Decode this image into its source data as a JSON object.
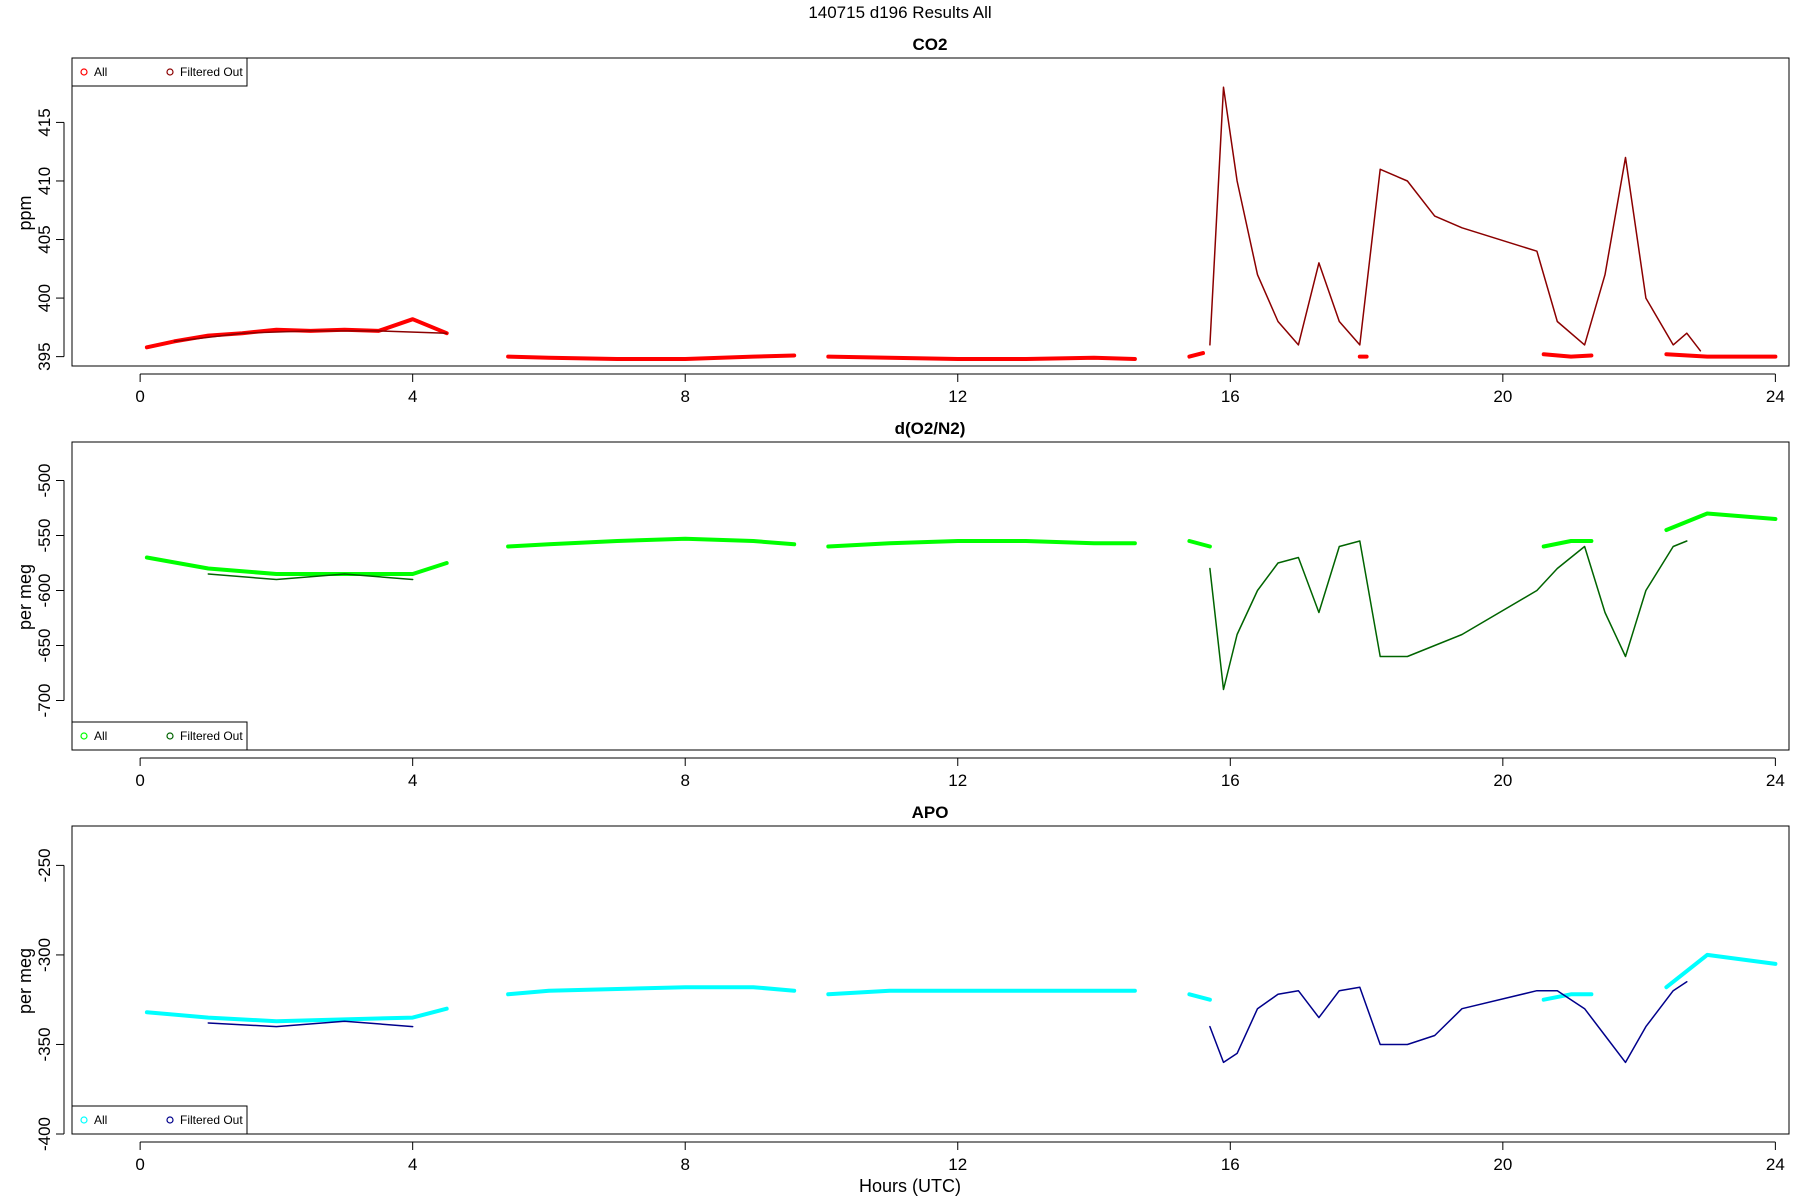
{
  "figure": {
    "title": "140715   d196   Results All",
    "xlabel": "Hours (UTC)"
  },
  "chart_data": [
    {
      "type": "scatter",
      "title": "CO2",
      "xlabel": "",
      "ylabel": "ppm",
      "xlim": [
        -1,
        24.2
      ],
      "ylim": [
        394.2,
        420.5
      ],
      "xticks": [
        0,
        4,
        8,
        12,
        16,
        20,
        24
      ],
      "yticks": [
        395,
        400,
        405,
        410,
        415
      ],
      "legend": {
        "position": "top-left",
        "entries": [
          "All",
          "Filtered Out"
        ]
      },
      "series": [
        {
          "name": "All",
          "color": "#ff0000",
          "segments": [
            {
              "x": [
                0.1,
                0.5,
                1.0,
                1.5,
                2.0,
                2.5,
                3.0,
                3.5,
                4.0,
                4.5
              ],
              "y": [
                395.8,
                396.3,
                396.8,
                397.0,
                397.3,
                397.2,
                397.3,
                397.2,
                398.2,
                397.0
              ]
            },
            {
              "x": [
                5.4,
                6,
                7,
                8,
                9,
                9.6
              ],
              "y": [
                395.0,
                394.9,
                394.8,
                394.8,
                395.0,
                395.1
              ]
            },
            {
              "x": [
                10.1,
                11,
                12,
                13,
                14,
                14.6
              ],
              "y": [
                395.0,
                394.9,
                394.8,
                394.8,
                394.9,
                394.8
              ]
            },
            {
              "x": [
                15.4,
                15.6
              ],
              "y": [
                395.0,
                395.3
              ]
            },
            {
              "x": [
                17.9,
                18.0
              ],
              "y": [
                395.0,
                395.0
              ]
            },
            {
              "x": [
                20.6,
                21.0,
                21.3
              ],
              "y": [
                395.2,
                395.0,
                395.1
              ]
            },
            {
              "x": [
                22.4,
                23,
                24
              ],
              "y": [
                395.2,
                395.0,
                395.0
              ]
            }
          ]
        },
        {
          "name": "Filtered Out",
          "color": "#8b0000",
          "segments": [
            {
              "x": [
                0.5,
                1.5,
                2.5,
                3.5,
                4.5
              ],
              "y": [
                396.3,
                397.0,
                397.2,
                397.2,
                397.0
              ]
            },
            {
              "x": [
                15.7,
                15.9,
                16.1,
                16.4,
                16.7,
                17.0,
                17.3,
                17.6,
                17.9,
                18.2,
                18.6,
                19.0,
                19.4,
                20.5,
                20.8,
                21.2,
                21.5,
                21.8,
                22.1,
                22.5,
                22.7,
                22.9
              ],
              "y": [
                396.0,
                418.0,
                410.0,
                402.0,
                398.0,
                396.0,
                403.0,
                398.0,
                396.0,
                411.0,
                410.0,
                407.0,
                406.0,
                404.0,
                398.0,
                396.0,
                402.0,
                412.0,
                400.0,
                396.0,
                397.0,
                395.5
              ]
            }
          ]
        }
      ]
    },
    {
      "type": "scatter",
      "title": "d(O2/N2)",
      "xlabel": "",
      "ylabel": "per meg",
      "xlim": [
        -1,
        24.2
      ],
      "ylim": [
        -745,
        -465
      ],
      "xticks": [
        0,
        4,
        8,
        12,
        16,
        20,
        24
      ],
      "yticks": [
        -500,
        -550,
        -600,
        -650,
        -700
      ],
      "legend": {
        "position": "bottom-left",
        "entries": [
          "All",
          "Filtered Out"
        ]
      },
      "series": [
        {
          "name": "All",
          "color": "#00ff00",
          "segments": [
            {
              "x": [
                0.1,
                1,
                2,
                3,
                4,
                4.5
              ],
              "y": [
                -570,
                -580,
                -585,
                -585,
                -585,
                -575
              ]
            },
            {
              "x": [
                5.4,
                6,
                7,
                8,
                9,
                9.6
              ],
              "y": [
                -560,
                -558,
                -555,
                -553,
                -555,
                -558
              ]
            },
            {
              "x": [
                10.1,
                11,
                12,
                13,
                14,
                14.6
              ],
              "y": [
                -560,
                -557,
                -555,
                -555,
                -557,
                -557
              ]
            },
            {
              "x": [
                15.4,
                15.7
              ],
              "y": [
                -555,
                -560
              ]
            },
            {
              "x": [
                20.6,
                21.0,
                21.3
              ],
              "y": [
                -560,
                -555,
                -555
              ]
            },
            {
              "x": [
                22.4,
                23,
                24
              ],
              "y": [
                -545,
                -530,
                -535
              ]
            }
          ]
        },
        {
          "name": "Filtered Out",
          "color": "#006400",
          "segments": [
            {
              "x": [
                1,
                2,
                3,
                4
              ],
              "y": [
                -585,
                -590,
                -585,
                -590
              ]
            },
            {
              "x": [
                15.7,
                15.9,
                16.1,
                16.4,
                16.7,
                17.0,
                17.3,
                17.6,
                17.9,
                18.2,
                18.6,
                19.0,
                19.4,
                20.5,
                20.8,
                21.2,
                21.5,
                21.8,
                22.1,
                22.5,
                22.7
              ],
              "y": [
                -580,
                -690,
                -640,
                -600,
                -575,
                -570,
                -620,
                -560,
                -555,
                -660,
                -660,
                -650,
                -640,
                -600,
                -580,
                -560,
                -620,
                -660,
                -600,
                -560,
                -555
              ]
            }
          ]
        }
      ]
    },
    {
      "type": "scatter",
      "title": "APO",
      "xlabel": "Hours (UTC)",
      "ylabel": "per meg",
      "xlim": [
        -1,
        24.2
      ],
      "ylim": [
        -400,
        -228
      ],
      "xticks": [
        0,
        4,
        8,
        12,
        16,
        20,
        24
      ],
      "yticks": [
        -250,
        -300,
        -350,
        -400
      ],
      "legend": {
        "position": "bottom-left",
        "entries": [
          "All",
          "Filtered Out"
        ]
      },
      "series": [
        {
          "name": "All",
          "color": "#00ffff",
          "segments": [
            {
              "x": [
                0.1,
                1,
                2,
                3,
                4,
                4.5
              ],
              "y": [
                -332,
                -335,
                -337,
                -336,
                -335,
                -330
              ]
            },
            {
              "x": [
                5.4,
                6,
                7,
                8,
                9,
                9.6
              ],
              "y": [
                -322,
                -320,
                -319,
                -318,
                -318,
                -320
              ]
            },
            {
              "x": [
                10.1,
                11,
                12,
                13,
                14,
                14.6
              ],
              "y": [
                -322,
                -320,
                -320,
                -320,
                -320,
                -320
              ]
            },
            {
              "x": [
                15.4,
                15.7
              ],
              "y": [
                -322,
                -325
              ]
            },
            {
              "x": [
                20.6,
                21.0,
                21.3
              ],
              "y": [
                -325,
                -322,
                -322
              ]
            },
            {
              "x": [
                22.4,
                23,
                24
              ],
              "y": [
                -318,
                -300,
                -305
              ]
            }
          ]
        },
        {
          "name": "Filtered Out",
          "color": "#00008b",
          "segments": [
            {
              "x": [
                1,
                2,
                3,
                4
              ],
              "y": [
                -338,
                -340,
                -337,
                -340
              ]
            },
            {
              "x": [
                15.7,
                15.9,
                16.1,
                16.4,
                16.7,
                17.0,
                17.3,
                17.6,
                17.9,
                18.2,
                18.6,
                19.0,
                19.4,
                20.5,
                20.8,
                21.2,
                21.5,
                21.8,
                22.1,
                22.5,
                22.7
              ],
              "y": [
                -340,
                -360,
                -355,
                -330,
                -322,
                -320,
                -335,
                -320,
                -318,
                -350,
                -350,
                -345,
                -330,
                -320,
                -320,
                -330,
                -345,
                -360,
                -340,
                -320,
                -315
              ]
            }
          ]
        }
      ]
    }
  ]
}
